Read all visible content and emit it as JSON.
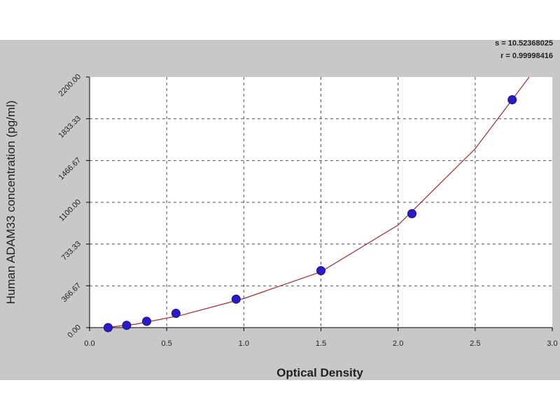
{
  "chart_data": {
    "type": "scatter",
    "xlabel": "Optical Density",
    "ylabel": "Human ADAM33 concentration (pg/ml)",
    "xlim": [
      0,
      3
    ],
    "ylim": [
      0,
      2200
    ],
    "x_ticks": [
      {
        "value": 0,
        "label": "0.0"
      },
      {
        "value": 0.5,
        "label": "0.5"
      },
      {
        "value": 1,
        "label": "1.0"
      },
      {
        "value": 1.5,
        "label": "1.5"
      },
      {
        "value": 2,
        "label": "2.0"
      },
      {
        "value": 2.5,
        "label": "2.5"
      },
      {
        "value": 3,
        "label": "3.0"
      }
    ],
    "y_ticks": [
      {
        "value": 0,
        "label": "0.00"
      },
      {
        "value": 366.67,
        "label": "366.67"
      },
      {
        "value": 733.33,
        "label": "733.33"
      },
      {
        "value": 1100,
        "label": "1100.00"
      },
      {
        "value": 1466.67,
        "label": "1466.67"
      },
      {
        "value": 1833.33,
        "label": "1833.33"
      },
      {
        "value": 2200,
        "label": "2200.00"
      }
    ],
    "grid": true,
    "points": [
      {
        "x": 0.12,
        "y": 0
      },
      {
        "x": 0.24,
        "y": 20
      },
      {
        "x": 0.37,
        "y": 55
      },
      {
        "x": 0.56,
        "y": 125
      },
      {
        "x": 0.95,
        "y": 250
      },
      {
        "x": 1.5,
        "y": 500
      },
      {
        "x": 2.09,
        "y": 1000
      },
      {
        "x": 2.74,
        "y": 2000
      }
    ],
    "fit_curve": [
      {
        "x": 0.1,
        "y": 0
      },
      {
        "x": 0.3,
        "y": 30
      },
      {
        "x": 0.6,
        "y": 110
      },
      {
        "x": 1.0,
        "y": 255
      },
      {
        "x": 1.5,
        "y": 490
      },
      {
        "x": 2.0,
        "y": 900
      },
      {
        "x": 2.5,
        "y": 1570
      },
      {
        "x": 2.74,
        "y": 2000
      },
      {
        "x": 2.85,
        "y": 2200
      }
    ],
    "stats": {
      "s": "s = 10.52368025",
      "r": "r = 0.99998416"
    },
    "colors": {
      "background": "#c8c8c8",
      "plot": "#ffffff",
      "curve": "#a52a2a",
      "point_fill": "#2a1acc",
      "point_stroke": "#1a1080",
      "grid": "#555555"
    }
  }
}
